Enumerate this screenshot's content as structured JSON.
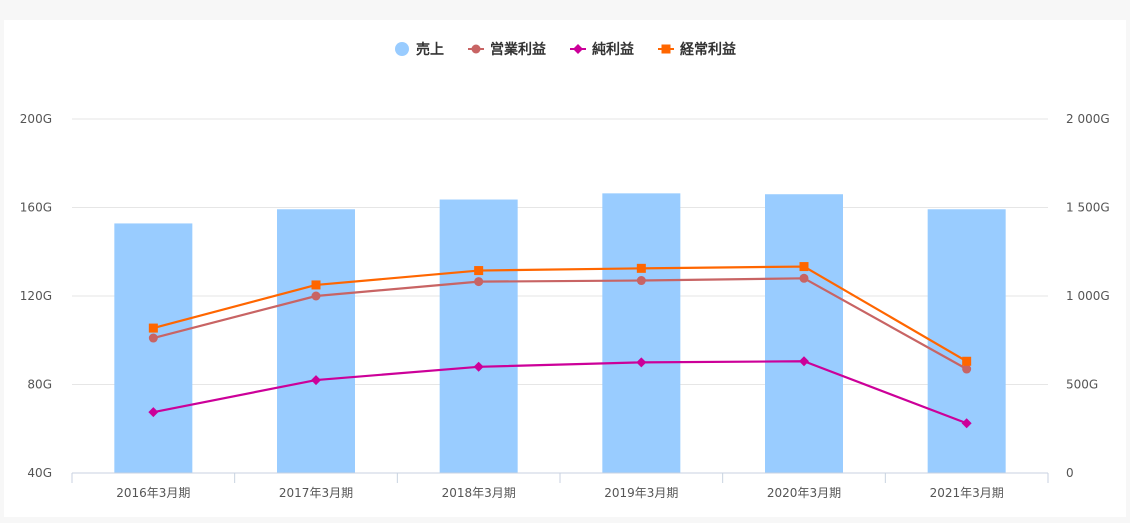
{
  "chart_data": {
    "type": "bar",
    "categories": [
      "2016年3月期",
      "2017年3月期",
      "2018年3月期",
      "2019年3月期",
      "2020年3月期",
      "2021年3月期"
    ],
    "series": [
      {
        "name": "売上",
        "type": "bar",
        "axis": "right",
        "color": "#99ccff",
        "values": [
          1410,
          1490,
          1545,
          1580,
          1575,
          1490
        ]
      },
      {
        "name": "営業利益",
        "type": "line",
        "axis": "left",
        "marker": "circle",
        "color": "#c86464",
        "values": [
          101,
          120,
          126.5,
          127,
          128,
          87
        ]
      },
      {
        "name": "純利益",
        "type": "line",
        "axis": "left",
        "marker": "diamond",
        "color": "#cc0099",
        "values": [
          67.5,
          82,
          88,
          90,
          90.5,
          62.5
        ]
      },
      {
        "name": "経常利益",
        "type": "line",
        "axis": "left",
        "marker": "square",
        "color": "#ff6600",
        "values": [
          105.5,
          125,
          131.5,
          132.5,
          133.3,
          90.5
        ]
      }
    ],
    "y_left": {
      "ticks": [
        "200G",
        "160G",
        "120G",
        "80G",
        "40G"
      ],
      "ylim": [
        40,
        200
      ]
    },
    "y_right": {
      "ticks": [
        "2 000G",
        "1 500G",
        "1 000G",
        "500G",
        "0"
      ],
      "ylim": [
        0,
        2000
      ]
    },
    "legend": "top-center",
    "grid": true
  }
}
